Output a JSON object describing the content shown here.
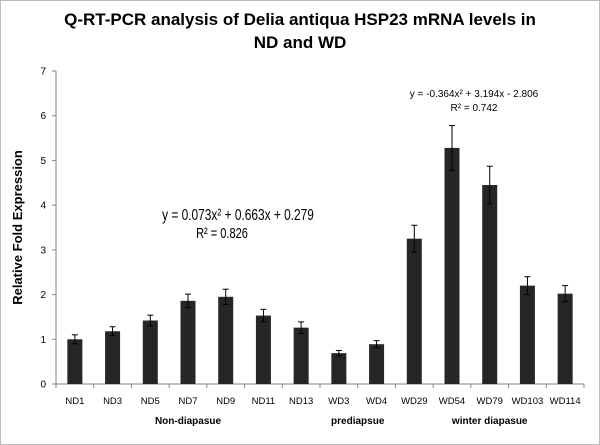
{
  "chart_data": {
    "type": "bar",
    "title_line1": "Q-RT-PCR analysis of Delia antiqua HSP23 mRNA levels in",
    "title_line2": "ND and WD",
    "ylabel": "Relative Fold Expression",
    "xlabel": "",
    "ylim": [
      0,
      7
    ],
    "yticks": [
      0,
      1,
      2,
      3,
      4,
      5,
      6,
      7
    ],
    "grid": false,
    "legend": "none",
    "bar_color": "#262626",
    "categories": [
      "ND1",
      "ND3",
      "ND5",
      "ND7",
      "ND9",
      "ND11",
      "ND13",
      "WD3",
      "WD4",
      "WD29",
      "WD54",
      "WD79",
      "WD103",
      "WD114"
    ],
    "values": [
      1.0,
      1.18,
      1.42,
      1.86,
      1.95,
      1.53,
      1.26,
      0.69,
      0.89,
      3.25,
      5.28,
      4.45,
      2.2,
      2.02
    ],
    "errors": [
      0.1,
      0.1,
      0.12,
      0.15,
      0.17,
      0.14,
      0.13,
      0.06,
      0.08,
      0.3,
      0.5,
      0.42,
      0.2,
      0.18
    ],
    "groups": [
      {
        "label": "Non-diapasue",
        "start": 0,
        "end": 6
      },
      {
        "label": "prediapsue",
        "start": 7,
        "end": 8
      },
      {
        "label": "winter diapasue",
        "start": 9,
        "end": 13
      }
    ],
    "annotations": [
      {
        "line1": "y = 0.073x² + 0.663x + 0.279",
        "line2": "R² = 0.826"
      },
      {
        "line1": "y = -0.364x² + 3.194x - 2.806",
        "line2": "R² = 0.742"
      }
    ]
  }
}
